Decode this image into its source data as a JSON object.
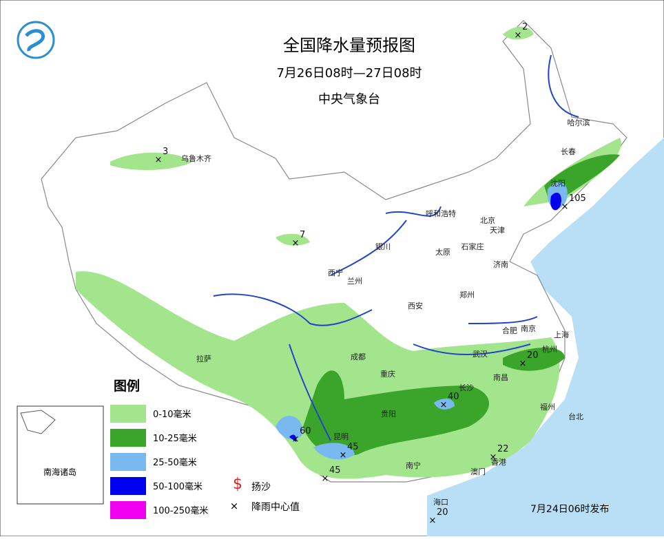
{
  "header": {
    "title": "全国降水量预报图",
    "period": "7月26日08时—27日08时",
    "issuer": "中央气象台"
  },
  "legend": {
    "title": "图例",
    "items": [
      {
        "label": "0-10毫米",
        "color": "#a3e58c"
      },
      {
        "label": "10-25毫米",
        "color": "#3aa52a"
      },
      {
        "label": "25-50毫米",
        "color": "#7ab9ef"
      },
      {
        "label": "50-100毫米",
        "color": "#0000f0"
      },
      {
        "label": "100-250毫米",
        "color": "#f000f0"
      }
    ],
    "symbols": [
      "扬沙",
      "降雨中心值"
    ]
  },
  "inset": "南海诸岛",
  "cities": [
    "哈尔滨",
    "长春",
    "沈阳",
    "乌鲁木齐",
    "呼和浩特",
    "北京",
    "天津",
    "银川",
    "石家庄",
    "太原",
    "济南",
    "西宁",
    "兰州",
    "西安",
    "郑州",
    "南京",
    "合肥",
    "上海",
    "拉萨",
    "成都",
    "重庆",
    "武汉",
    "杭州",
    "南昌",
    "长沙",
    "贵阳",
    "福州",
    "台北",
    "昆明",
    "南宁",
    "澳门",
    "香港",
    "海口"
  ],
  "centers": [
    "2",
    "3",
    "7",
    "105",
    "20",
    "40",
    "60",
    "45",
    "45",
    "22",
    "20"
  ],
  "release": "7月24日06时发布"
}
